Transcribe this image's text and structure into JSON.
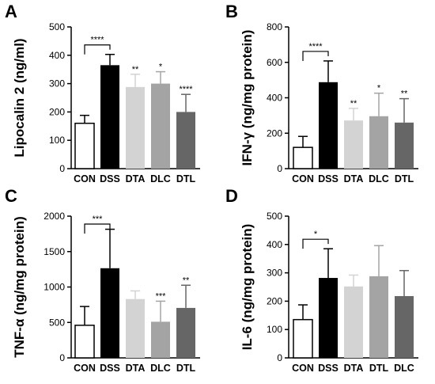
{
  "chart_data": [
    {
      "panel": "A",
      "type": "bar",
      "ylabel": "Lipocalin 2 (ng/ml)",
      "ylim": [
        0,
        500
      ],
      "yticks": [
        "0",
        "100",
        "200",
        "300",
        "400",
        "500"
      ],
      "categories": [
        "CON",
        "DSS",
        "DTA",
        "DLC",
        "DTL"
      ],
      "values": [
        160,
        365,
        288,
        300,
        200
      ],
      "errors": [
        28,
        38,
        45,
        42,
        62
      ],
      "colors": [
        "#ffffff",
        "#000000",
        "#d3d3d3",
        "#a4a4a4",
        "#666666"
      ],
      "significance": [
        "",
        "",
        "**",
        "*",
        "****"
      ],
      "bracket": {
        "from": 0,
        "to": 1,
        "label": "****"
      }
    },
    {
      "panel": "B",
      "type": "bar",
      "ylabel": "IFN-γ (ng/mg protein)",
      "ylim": [
        0,
        800
      ],
      "yticks": [
        "0",
        "200",
        "400",
        "600",
        "800"
      ],
      "categories": [
        "CON",
        "DSS",
        "DTA",
        "DLC",
        "DTL"
      ],
      "values": [
        120,
        488,
        272,
        296,
        260
      ],
      "errors": [
        62,
        120,
        68,
        130,
        135
      ],
      "colors": [
        "#ffffff",
        "#000000",
        "#d3d3d3",
        "#a4a4a4",
        "#666666"
      ],
      "significance": [
        "",
        "",
        "**",
        "*",
        "**"
      ],
      "bracket": {
        "from": 0,
        "to": 1,
        "label": "****"
      }
    },
    {
      "panel": "C",
      "type": "bar",
      "ylabel": "TNF-α (ng/mg protein)",
      "ylim": [
        0,
        2000
      ],
      "yticks": [
        "0",
        "500",
        "1000",
        "1500",
        "2000"
      ],
      "categories": [
        "CON",
        "DSS",
        "DTA",
        "DLC",
        "DTL"
      ],
      "values": [
        460,
        1265,
        830,
        510,
        705
      ],
      "errors": [
        265,
        550,
        115,
        290,
        320
      ],
      "colors": [
        "#ffffff",
        "#000000",
        "#d3d3d3",
        "#a4a4a4",
        "#666666"
      ],
      "significance": [
        "",
        "",
        "",
        "***",
        "**"
      ],
      "bracket": {
        "from": 0,
        "to": 1,
        "label": "***"
      }
    },
    {
      "panel": "D",
      "type": "bar",
      "ylabel": "IL-6 (ng/mg protein)",
      "ylim": [
        0,
        500
      ],
      "yticks": [
        "0",
        "100",
        "200",
        "300",
        "400",
        "500"
      ],
      "categories": [
        "CON",
        "DSS",
        "DTA",
        "DTL",
        "DLC"
      ],
      "values": [
        135,
        282,
        252,
        288,
        218
      ],
      "errors": [
        52,
        103,
        40,
        108,
        90
      ],
      "colors": [
        "#ffffff",
        "#000000",
        "#d3d3d3",
        "#a4a4a4",
        "#666666"
      ],
      "significance": [
        "",
        "",
        "",
        "",
        ""
      ],
      "bracket": {
        "from": 0,
        "to": 1,
        "label": "*"
      }
    }
  ]
}
